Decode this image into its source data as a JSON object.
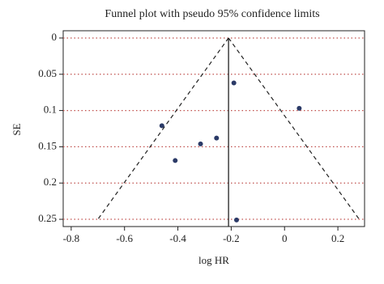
{
  "chart_data": {
    "type": "scatter",
    "title": "Funnel plot with pseudo 95% confidence limits",
    "x_label": "log HR",
    "y_label": "SE",
    "x": [
      -0.19,
      0.055,
      -0.46,
      -0.315,
      -0.255,
      -0.41,
      -0.18
    ],
    "values": [
      0.062,
      0.097,
      0.121,
      0.146,
      0.138,
      0.169,
      0.251
    ],
    "color": "#2b3a67",
    "xlim": [
      -0.83,
      0.3
    ],
    "xticks": [
      -0.8,
      -0.6,
      -0.4,
      -0.2,
      0,
      0.2
    ],
    "ylim": [
      -0.01,
      0.26
    ],
    "yticks": [
      0,
      0.05,
      0.1,
      0.15,
      0.2,
      0.25
    ],
    "y_inverted": true,
    "grid": true,
    "grid_color": "#c0504d",
    "pooled_estimate": -0.21,
    "funnel": {
      "apex": [
        -0.21,
        0
      ],
      "left": [
        -0.7,
        0.25
      ],
      "right": [
        0.28,
        0.25
      ]
    }
  }
}
